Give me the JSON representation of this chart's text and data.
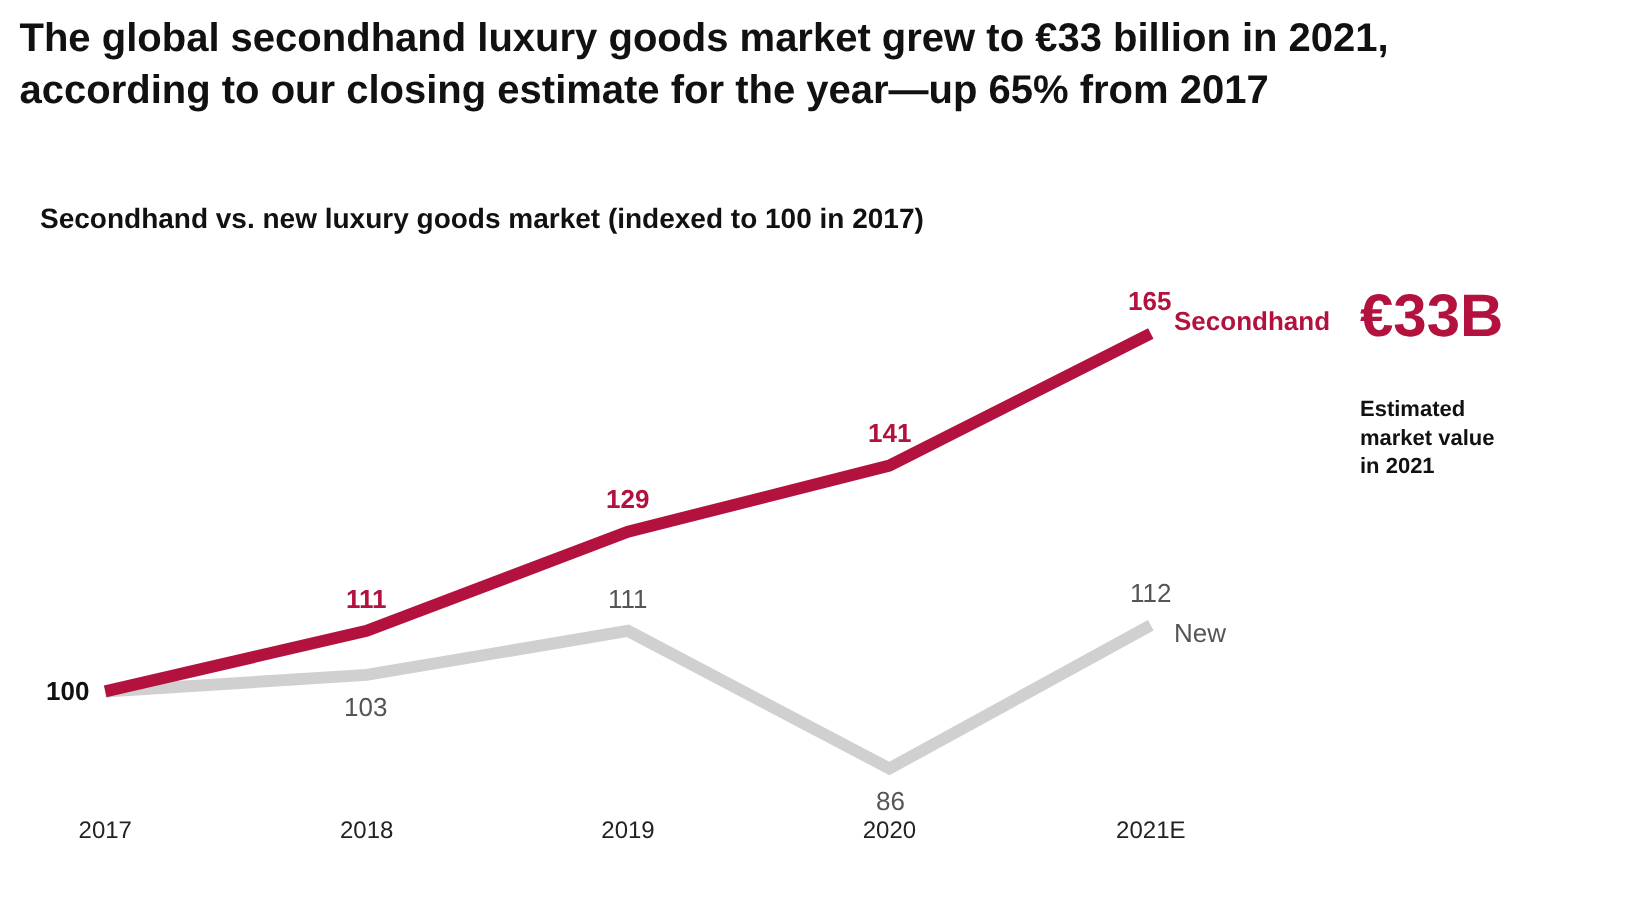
{
  "chart_data": {
    "type": "line",
    "title": "The global secondhand luxury goods market grew to €33 billion in 2021, according to our closing estimate for the year—up 65% from 2017",
    "subtitle": "Secondhand vs. new luxury goods market (indexed to 100 in 2017)",
    "categories": [
      "2017",
      "2018",
      "2019",
      "2020",
      "2021E"
    ],
    "series": [
      {
        "name": "Secondhand",
        "color": "#b3123e",
        "values": [
          100,
          111,
          129,
          141,
          165
        ],
        "value_labels": [
          "100",
          "111",
          "129",
          "141",
          "165"
        ]
      },
      {
        "name": "New",
        "color": "#d0d0d0",
        "values": [
          100,
          103,
          111,
          86,
          112
        ],
        "value_labels": [
          null,
          "103",
          "111",
          "86",
          "112"
        ]
      }
    ],
    "annotations": [
      "€33B",
      "Estimated market value in 2021"
    ],
    "legend": false,
    "marker": "none",
    "line_style": "solid"
  }
}
